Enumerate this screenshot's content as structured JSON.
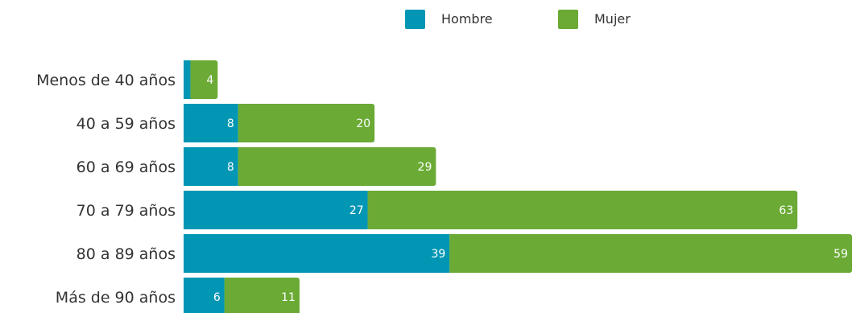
{
  "chart_data": {
    "type": "bar",
    "orientation": "horizontal",
    "stacked": true,
    "categories": [
      "Menos de 40 años",
      "40 a 59 años",
      "60 a 69 años",
      "70 a 79 años",
      "80 a 89 años",
      "Más de 90 años"
    ],
    "series": [
      {
        "name": "Hombre",
        "color": "#0096b4",
        "values": [
          1,
          8,
          8,
          27,
          39,
          6
        ],
        "labels": [
          "",
          "8",
          "8",
          "27",
          "39",
          "6"
        ]
      },
      {
        "name": "Mujer",
        "color": "#6aaa35",
        "values": [
          4,
          20,
          29,
          63,
          59,
          11
        ],
        "labels": [
          "4",
          "20",
          "29",
          "63",
          "59",
          "11"
        ]
      }
    ],
    "legend_position": "top",
    "grid": false,
    "xlim": [
      0,
      98
    ]
  }
}
